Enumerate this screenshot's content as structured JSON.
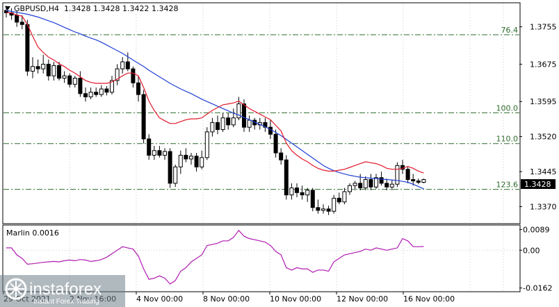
{
  "header": {
    "symbol_label": "GBPUSD,H4",
    "ohlc_label": "1.3428 1.3428 1.3422 1.3428"
  },
  "price_axis": {
    "ticks": [
      "1.3755",
      "1.3675",
      "1.3595",
      "1.3520",
      "1.3445",
      "1.3370"
    ],
    "current_price": "1.3428"
  },
  "fib_levels": [
    {
      "label": "76.4",
      "value": 1.3738
    },
    {
      "label": "100.0",
      "value": 1.3571
    },
    {
      "label": "110.0",
      "value": 1.3505
    },
    {
      "label": "123.6",
      "value": 1.3407
    }
  ],
  "time_axis": {
    "ticks": [
      "29 Oct 2021",
      "2 Nov 16:00",
      "4 Nov 00:00",
      "8 Nov 00:00",
      "10 Nov 00:00",
      "12 Nov 00:00",
      "16 Nov 00:00"
    ]
  },
  "indicator": {
    "label": "Marlin 0.0016",
    "ticks": [
      "0.0089",
      "0.00",
      "-0.0162"
    ]
  },
  "watermark": {
    "brand": "instaforex",
    "tagline": "Instant Forex Trading"
  },
  "colors": {
    "bull": "#ffffff",
    "bear": "#000000",
    "ma_fast": "#e0182a",
    "ma_slow": "#1f3fd6",
    "fib": "#2e6b2e",
    "oscillator": "#b01ab0",
    "grid": "#c8c8c8"
  },
  "chart_data": {
    "type": "candlestick",
    "price_range": [
      1.3335,
      1.3805
    ],
    "oscillator_range": [
      -0.0175,
      0.0105
    ],
    "candles": [
      [
        1.379,
        1.38,
        1.3775,
        1.3785
      ],
      [
        1.3785,
        1.3795,
        1.377,
        1.378
      ],
      [
        1.378,
        1.379,
        1.3755,
        1.3765
      ],
      [
        1.3765,
        1.378,
        1.375,
        1.376
      ],
      [
        1.376,
        1.377,
        1.365,
        1.366
      ],
      [
        1.366,
        1.369,
        1.3645,
        1.367
      ],
      [
        1.367,
        1.3685,
        1.3655,
        1.3665
      ],
      [
        1.3665,
        1.3695,
        1.3655,
        1.3675
      ],
      [
        1.3675,
        1.3685,
        1.364,
        1.365
      ],
      [
        1.365,
        1.368,
        1.364,
        1.3672
      ],
      [
        1.3672,
        1.368,
        1.364,
        1.3645
      ],
      [
        1.3645,
        1.366,
        1.3635,
        1.365
      ],
      [
        1.365,
        1.3655,
        1.3625,
        1.3632
      ],
      [
        1.3632,
        1.365,
        1.3625,
        1.3645
      ],
      [
        1.3645,
        1.366,
        1.3605,
        1.3612
      ],
      [
        1.3612,
        1.3625,
        1.3595,
        1.3605
      ],
      [
        1.3605,
        1.3625,
        1.36,
        1.3615
      ],
      [
        1.3615,
        1.3625,
        1.3605,
        1.361
      ],
      [
        1.361,
        1.363,
        1.3605,
        1.3622
      ],
      [
        1.3622,
        1.3628,
        1.3608,
        1.3615
      ],
      [
        1.3615,
        1.365,
        1.361,
        1.364
      ],
      [
        1.364,
        1.3675,
        1.363,
        1.3665
      ],
      [
        1.3665,
        1.369,
        1.3655,
        1.368
      ],
      [
        1.368,
        1.37,
        1.366,
        1.3665
      ],
      [
        1.3665,
        1.367,
        1.3625,
        1.3635
      ],
      [
        1.3635,
        1.365,
        1.3595,
        1.361
      ],
      [
        1.361,
        1.362,
        1.3505,
        1.3515
      ],
      [
        1.3515,
        1.3525,
        1.347,
        1.348
      ],
      [
        1.348,
        1.35,
        1.347,
        1.349
      ],
      [
        1.349,
        1.35,
        1.3475,
        1.348
      ],
      [
        1.348,
        1.3495,
        1.347,
        1.3488
      ],
      [
        1.3488,
        1.3495,
        1.341,
        1.342
      ],
      [
        1.342,
        1.346,
        1.3412,
        1.3455
      ],
      [
        1.3455,
        1.349,
        1.344,
        1.348
      ],
      [
        1.348,
        1.3495,
        1.3465,
        1.3472
      ],
      [
        1.3472,
        1.3485,
        1.346,
        1.3478
      ],
      [
        1.3478,
        1.3485,
        1.3445,
        1.3455
      ],
      [
        1.3455,
        1.349,
        1.345,
        1.3475
      ],
      [
        1.3475,
        1.354,
        1.347,
        1.353
      ],
      [
        1.353,
        1.356,
        1.352,
        1.355
      ],
      [
        1.355,
        1.3565,
        1.3525,
        1.3535
      ],
      [
        1.3535,
        1.357,
        1.353,
        1.356
      ],
      [
        1.356,
        1.357,
        1.3535,
        1.3545
      ],
      [
        1.3545,
        1.358,
        1.354,
        1.356
      ],
      [
        1.356,
        1.3605,
        1.3555,
        1.359
      ],
      [
        1.359,
        1.36,
        1.353,
        1.354
      ],
      [
        1.354,
        1.3565,
        1.353,
        1.3555
      ],
      [
        1.3555,
        1.356,
        1.3535,
        1.3545
      ],
      [
        1.3545,
        1.356,
        1.3535,
        1.355
      ],
      [
        1.355,
        1.356,
        1.353,
        1.354
      ],
      [
        1.354,
        1.3555,
        1.3515,
        1.3525
      ],
      [
        1.3525,
        1.3535,
        1.3475,
        1.3485
      ],
      [
        1.3485,
        1.3495,
        1.346,
        1.347
      ],
      [
        1.347,
        1.348,
        1.3385,
        1.3395
      ],
      [
        1.3395,
        1.342,
        1.3385,
        1.341
      ],
      [
        1.341,
        1.342,
        1.339,
        1.34
      ],
      [
        1.34,
        1.3415,
        1.3385,
        1.3395
      ],
      [
        1.3395,
        1.341,
        1.338,
        1.3405
      ],
      [
        1.3405,
        1.341,
        1.336,
        1.3368
      ],
      [
        1.3368,
        1.3385,
        1.3355,
        1.3362
      ],
      [
        1.3362,
        1.3375,
        1.3355,
        1.3365
      ],
      [
        1.3365,
        1.3372,
        1.3352,
        1.336
      ],
      [
        1.336,
        1.3395,
        1.3355,
        1.3388
      ],
      [
        1.3388,
        1.34,
        1.3375,
        1.338
      ],
      [
        1.338,
        1.341,
        1.3375,
        1.3402
      ],
      [
        1.3402,
        1.342,
        1.3395,
        1.3415
      ],
      [
        1.3415,
        1.3425,
        1.3405,
        1.342
      ],
      [
        1.342,
        1.344,
        1.3405,
        1.341
      ],
      [
        1.341,
        1.3435,
        1.3405,
        1.3428
      ],
      [
        1.3428,
        1.344,
        1.3405,
        1.3412
      ],
      [
        1.3412,
        1.344,
        1.3408,
        1.3432
      ],
      [
        1.3432,
        1.3445,
        1.3415,
        1.342
      ],
      [
        1.342,
        1.343,
        1.3405,
        1.3412
      ],
      [
        1.3412,
        1.3428,
        1.3405,
        1.3418
      ],
      [
        1.3418,
        1.3465,
        1.3412,
        1.3458
      ],
      [
        1.3458,
        1.347,
        1.344,
        1.345
      ],
      [
        1.345,
        1.3455,
        1.342,
        1.3428
      ],
      [
        1.3428,
        1.344,
        1.3415,
        1.3425
      ],
      [
        1.3425,
        1.343,
        1.3418,
        1.3422
      ],
      [
        1.3422,
        1.343,
        1.342,
        1.3428
      ]
    ],
    "ma_fast": [
      1.3785,
      1.3785,
      1.378,
      1.3778,
      1.376,
      1.3735,
      1.3712,
      1.37,
      1.369,
      1.3684,
      1.3676,
      1.367,
      1.3662,
      1.3656,
      1.3648,
      1.364,
      1.3636,
      1.3634,
      1.3634,
      1.3634,
      1.3637,
      1.3643,
      1.365,
      1.3656,
      1.3656,
      1.365,
      1.3625,
      1.3596,
      1.3576,
      1.356,
      1.3554,
      1.3548,
      1.3548,
      1.3552,
      1.3556,
      1.3558,
      1.3558,
      1.356,
      1.3568,
      1.3576,
      1.3582,
      1.3588,
      1.359,
      1.3592,
      1.3596,
      1.3588,
      1.358,
      1.3574,
      1.3568,
      1.3562,
      1.3556,
      1.3544,
      1.3532,
      1.3506,
      1.349,
      1.348,
      1.3472,
      1.3466,
      1.3458,
      1.3452,
      1.3448,
      1.3446,
      1.3446,
      1.3448,
      1.345,
      1.3454,
      1.3458,
      1.3462,
      1.3466,
      1.3464,
      1.3462,
      1.3458,
      1.3452,
      1.345,
      1.345,
      1.3452,
      1.3456,
      1.3452,
      1.3446,
      1.3442
    ],
    "ma_slow": [
      1.379,
      1.3788,
      1.3786,
      1.3784,
      1.3782,
      1.3779,
      1.3776,
      1.3772,
      1.3768,
      1.3764,
      1.3759,
      1.3754,
      1.3749,
      1.3744,
      1.374,
      1.3735,
      1.3731,
      1.3727,
      1.3722,
      1.3716,
      1.371,
      1.3704,
      1.3698,
      1.3691,
      1.3684,
      1.3677,
      1.367,
      1.3662,
      1.3655,
      1.3648,
      1.3641,
      1.3634,
      1.3628,
      1.3622,
      1.3617,
      1.3612,
      1.3606,
      1.36,
      1.3595,
      1.359,
      1.3585,
      1.358,
      1.3575,
      1.357,
      1.3566,
      1.3561,
      1.3556,
      1.3551,
      1.3546,
      1.3541,
      1.3535,
      1.3529,
      1.3522,
      1.3514,
      1.3506,
      1.3498,
      1.349,
      1.3482,
      1.3474,
      1.3466,
      1.3458,
      1.3452,
      1.3447,
      1.3443,
      1.344,
      1.3437,
      1.3435,
      1.3433,
      1.3432,
      1.3431,
      1.343,
      1.3429,
      1.3428,
      1.3427,
      1.3426,
      1.3424,
      1.3422,
      1.3418,
      1.3413,
      1.3408
    ],
    "oscillator": [
      0.001,
      0.001,
      -0.002,
      -0.0035,
      -0.006,
      -0.0058,
      -0.0055,
      -0.0052,
      -0.005,
      -0.0048,
      -0.005,
      -0.0045,
      -0.0042,
      -0.0045,
      -0.004,
      -0.0042,
      -0.0048,
      -0.0045,
      -0.004,
      -0.003,
      -0.0015,
      0.0,
      0.0015,
      0.001,
      0.0005,
      -0.0025,
      -0.008,
      -0.0125,
      -0.012,
      -0.011,
      -0.012,
      -0.0145,
      -0.013,
      -0.009,
      -0.0075,
      -0.005,
      -0.0035,
      -0.002,
      0.002,
      0.0025,
      0.003,
      0.004,
      0.004,
      0.0055,
      0.0085,
      0.006,
      0.005,
      0.0045,
      0.004,
      0.0035,
      0.002,
      -0.0005,
      -0.002,
      -0.0075,
      -0.0085,
      -0.0075,
      -0.008,
      -0.008,
      -0.0095,
      -0.0085,
      -0.0085,
      -0.009,
      -0.005,
      -0.0035,
      -0.002,
      -0.0015,
      -0.001,
      -0.0005,
      0.0005,
      0.0,
      0.001,
      0.0005,
      0.0,
      0.0005,
      0.001,
      0.005,
      0.004,
      0.0015,
      0.0015,
      0.0016
    ]
  }
}
